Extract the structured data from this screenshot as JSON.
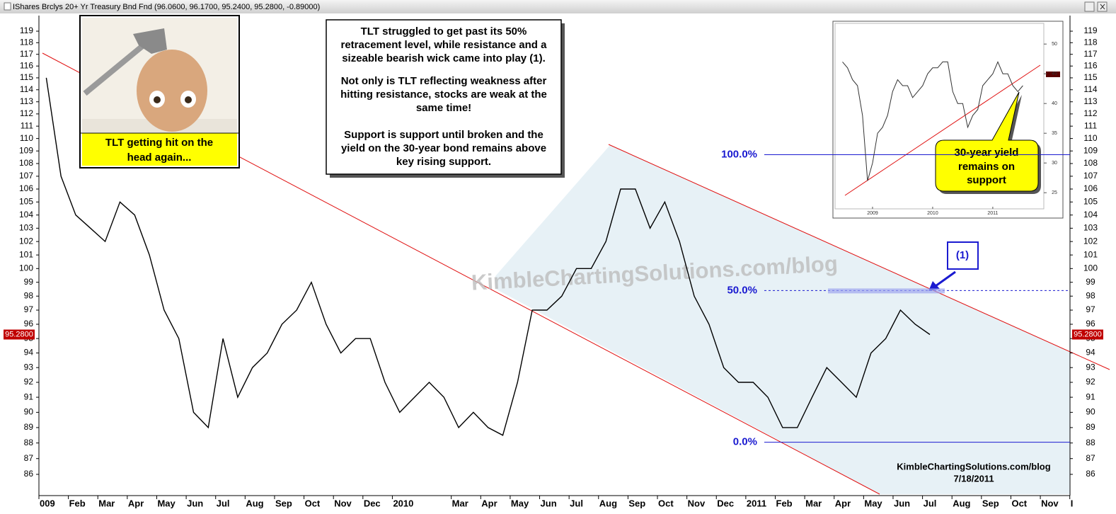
{
  "chart_data": [
    {
      "type": "line",
      "window_title": "IShares Brclys 20+ Yr Treasury Bnd Fnd (96.0600, 96.1700, 95.2400, 95.2800, -0.89000)",
      "categories": [
        "009",
        null,
        "Feb",
        null,
        "Mar",
        null,
        "Apr",
        null,
        "May",
        null,
        "Jun",
        null,
        "Jul",
        null,
        "Aug",
        null,
        "Sep",
        null,
        "Oct",
        null,
        "Nov",
        null,
        "Dec",
        null,
        "2010",
        null,
        null,
        null,
        "Mar",
        null,
        "Apr",
        null,
        "May",
        null,
        "Jun",
        null,
        "Jul",
        null,
        "Aug",
        null,
        "Sep",
        null,
        "Oct",
        null,
        "Nov",
        null,
        "Dec",
        null,
        "2011",
        null,
        "Feb",
        null,
        "Mar",
        null,
        "Apr",
        null,
        "May",
        null,
        "Jun",
        null,
        "Jul",
        null,
        "Aug",
        null,
        "Sep",
        null,
        "Oct",
        null,
        "Nov",
        null,
        "I",
        null
      ],
      "series": [
        {
          "color": "#000000",
          "values": [
            115,
            107,
            104,
            103,
            102,
            105,
            104,
            101,
            97,
            95,
            90,
            89,
            95,
            91,
            93,
            94,
            96,
            97,
            99,
            96,
            94,
            95,
            95,
            92,
            90,
            91,
            92,
            91,
            89,
            90,
            89,
            88.5,
            92,
            97,
            97,
            98,
            100,
            100,
            102,
            106,
            106,
            103,
            105,
            102,
            98,
            96,
            93,
            92,
            92,
            91,
            89,
            89,
            91,
            93,
            92,
            91,
            94,
            95,
            97,
            96,
            95.28,
            null,
            null,
            null,
            null,
            null,
            null,
            null,
            null,
            null,
            null,
            null
          ]
        }
      ],
      "log_scale": true,
      "ylim": [
        84.76,
        119.87
      ],
      "yticks": [
        86,
        87,
        88,
        89,
        90,
        91,
        92,
        93,
        94,
        95,
        96,
        97,
        98,
        99,
        100,
        101,
        102,
        103,
        104,
        105,
        106,
        107,
        108,
        109,
        110,
        111,
        112,
        113,
        114,
        115,
        116,
        117,
        118,
        119
      ],
      "last_price": {
        "value": 95.28,
        "label": "95.2800"
      },
      "fib_levels": [
        {
          "price": 108.7,
          "label": "100.0%"
        },
        {
          "price": 98.4,
          "label": "50.0%"
        },
        {
          "price": 88.05,
          "label": "0.0%"
        }
      ],
      "callout_lines": [
        "TLT struggled to get past its 50%",
        "retracement level, while resistance and a",
        "sizeable bearish wick came into play (1).",
        "Not only is TLT reflecting weakness after",
        "hitting resistance, stocks are weak at the",
        "same time!",
        "Support is support until broken and the",
        "yield on the 30-year bond remains above",
        "key rising support."
      ],
      "photo_caption": [
        "TLT getting hit on the",
        "head again..."
      ],
      "yield_caption": [
        "30-year yield",
        "remains on",
        "support"
      ],
      "marker": "(1)",
      "watermark": "KimbleChartingSolutions.com/blog",
      "footer": [
        "KimbleChartingSolutions.com/blog",
        "7/18/2011"
      ]
    },
    {
      "type": "line",
      "categories": [
        null,
        null,
        null,
        null,
        null,
        null,
        "2009",
        null,
        null,
        null,
        null,
        null,
        null,
        null,
        null,
        null,
        null,
        null,
        "2010",
        null,
        null,
        null,
        null,
        null,
        null,
        null,
        null,
        null,
        null,
        null,
        "2011",
        null,
        null,
        null,
        null,
        null,
        null
      ],
      "series": [
        {
          "color": "#333333",
          "values": [
            47,
            46,
            44,
            43,
            38,
            27,
            30,
            35,
            36,
            38,
            42,
            44,
            43,
            43,
            41,
            42,
            43,
            45,
            46,
            46,
            47,
            47,
            42,
            40,
            40,
            36,
            38,
            39,
            43,
            44,
            45,
            47,
            45,
            45,
            43,
            42,
            43
          ]
        }
      ],
      "ylim": [
        23,
        53
      ],
      "yticks": [
        25,
        30,
        35,
        40,
        45,
        50
      ]
    }
  ]
}
